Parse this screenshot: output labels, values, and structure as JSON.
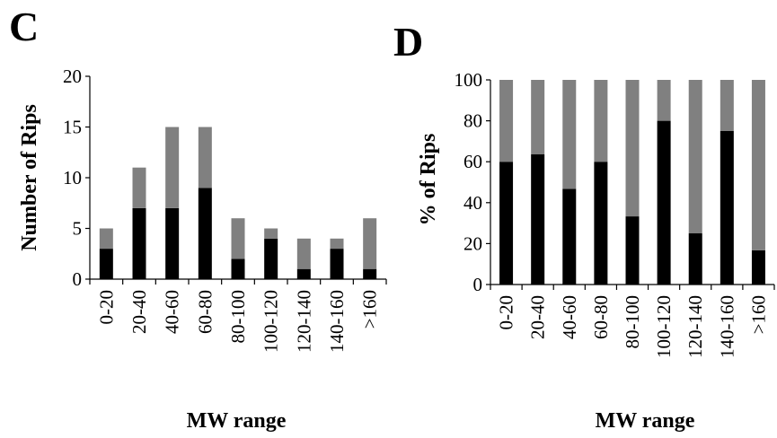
{
  "chart_data": [
    {
      "panel_label": "C",
      "type": "bar",
      "stacked": true,
      "xlabel": "MW range",
      "ylabel": "Number of Rips",
      "ylim": [
        0,
        20
      ],
      "yticks": [
        0,
        5,
        10,
        15,
        20
      ],
      "categories": [
        "0-20",
        "20-40",
        "40-60",
        "60-80",
        "80-100",
        "100-120",
        "120-140",
        "140-160",
        ">160"
      ],
      "series": [
        {
          "values": [
            3,
            7,
            7,
            9,
            2,
            4,
            1,
            3,
            1
          ],
          "color": "#000000"
        },
        {
          "values": [
            2,
            4,
            8,
            6,
            4,
            1,
            3,
            1,
            5
          ],
          "color": "#808080"
        }
      ],
      "grid": false,
      "legend": "none"
    },
    {
      "panel_label": "D",
      "type": "bar",
      "stacked": true,
      "xlabel": "MW range",
      "ylabel": "% of Rips",
      "ylim": [
        0,
        100
      ],
      "yticks": [
        0,
        20,
        40,
        60,
        80,
        100
      ],
      "categories": [
        "0-20",
        "20-40",
        "40-60",
        "60-80",
        "80-100",
        "100-120",
        "120-140",
        "140-160",
        ">160"
      ],
      "series": [
        {
          "values": [
            60,
            63.6,
            46.7,
            60,
            33.3,
            80,
            25,
            75,
            16.7
          ],
          "color": "#000000"
        },
        {
          "values": [
            40,
            36.4,
            53.3,
            40,
            66.7,
            20,
            75,
            25,
            83.3
          ],
          "color": "#808080"
        }
      ],
      "grid": false,
      "legend": "none"
    }
  ]
}
